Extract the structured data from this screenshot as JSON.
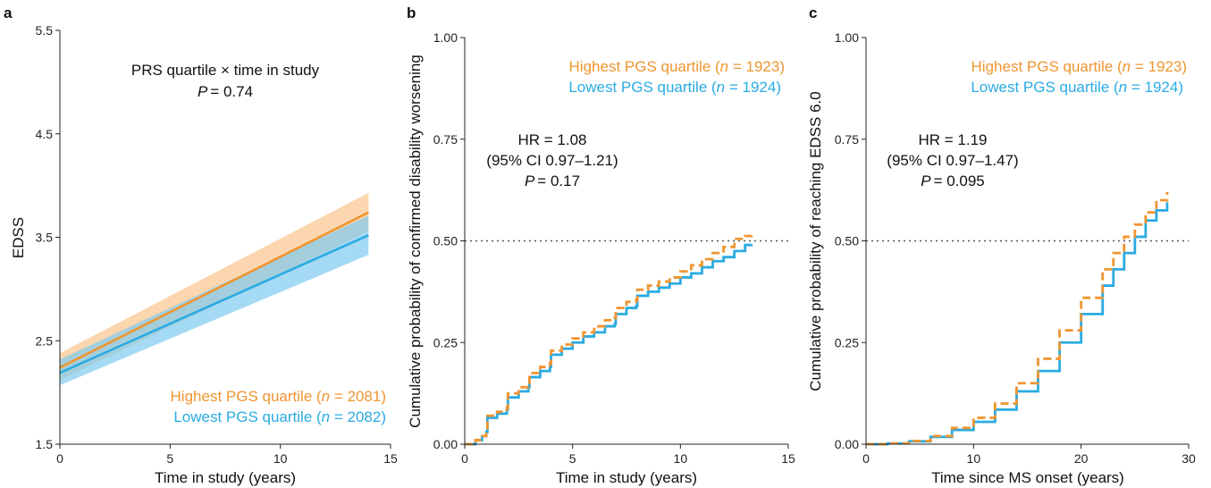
{
  "colors": {
    "highest": "#EF9530",
    "lowest": "#2AABE2",
    "highest_band": "#F9C48D",
    "lowest_band": "#7FCBF0"
  },
  "panels": {
    "a": {
      "letter": "a",
      "annotation_line1": "PRS quartile × time in study",
      "p_label": "P",
      "p_value": "= 0.74",
      "legend_highest_prefix": "Highest PGS quartile (",
      "legend_highest_n": "n",
      "legend_highest_suffix": " = 2081)",
      "legend_lowest_prefix": "Lowest PGS quartile (",
      "legend_lowest_n": "n",
      "legend_lowest_suffix": " = 2082)"
    },
    "b": {
      "letter": "b",
      "hr_line": "HR = 1.08",
      "ci_line": "(95% CI 0.97–1.21)",
      "p_label": "P",
      "p_value": "= 0.17",
      "legend_highest_prefix": "Highest PGS quartile (",
      "legend_highest_n": "n",
      "legend_highest_suffix": " = 1923)",
      "legend_lowest_prefix": "Lowest PGS quartile (",
      "legend_lowest_n": "n",
      "legend_lowest_suffix": " = 1924)"
    },
    "c": {
      "letter": "c",
      "hr_line": "HR = 1.19",
      "ci_line": "(95% CI 0.97–1.47)",
      "p_label": "P",
      "p_value": "= 0.095",
      "legend_highest_prefix": "Highest PGS quartile (",
      "legend_highest_n": "n",
      "legend_highest_suffix": " = 1923)",
      "legend_lowest_prefix": "Lowest PGS quartile (",
      "legend_lowest_n": "n",
      "legend_lowest_suffix": " = 1924)"
    }
  },
  "chart_data": [
    {
      "type": "line",
      "panel": "a",
      "xlabel": "Time in study (years)",
      "ylabel": "EDSS",
      "xlim": [
        0,
        15
      ],
      "ylim": [
        1.5,
        5.5
      ],
      "xticks": [
        0,
        5,
        10,
        15
      ],
      "xtick_labels": [
        "0",
        "5",
        "10",
        "15"
      ],
      "yticks": [
        1.5,
        2.5,
        3.5,
        4.5,
        5.5
      ],
      "ytick_labels": [
        "1.5",
        "2.5",
        "3.5",
        "4.5",
        "5.5"
      ],
      "series": [
        {
          "name": "Highest PGS quartile (n = 2081)",
          "x": [
            0,
            14
          ],
          "y": [
            2.24,
            3.74
          ],
          "ci_lower": [
            2.12,
            3.56
          ],
          "ci_upper": [
            2.38,
            3.93
          ]
        },
        {
          "name": "Lowest PGS quartile (n = 2082)",
          "x": [
            0,
            14
          ],
          "y": [
            2.19,
            3.52
          ],
          "ci_lower": [
            2.07,
            3.33
          ],
          "ci_upper": [
            2.32,
            3.71
          ]
        }
      ]
    },
    {
      "type": "line",
      "panel": "b",
      "xlabel": "Time in study (years)",
      "ylabel": "Cumulative probability of confirmed disability worsening",
      "xlim": [
        0,
        15
      ],
      "ylim": [
        0,
        1
      ],
      "xticks": [
        0,
        5,
        10,
        15
      ],
      "xtick_labels": [
        "0",
        "5",
        "10",
        "15"
      ],
      "yticks": [
        0,
        0.25,
        0.5,
        0.75,
        1
      ],
      "ytick_labels": [
        "0.00",
        "0.25",
        "0.50",
        "0.75",
        "1.00"
      ],
      "reference_line_y": 0.5,
      "series": [
        {
          "name": "Highest PGS quartile (n = 1923)",
          "x": [
            0,
            0.5,
            0.8,
            1.0,
            1.05,
            1.5,
            1.95,
            2.0,
            2.5,
            2.95,
            3.0,
            3.5,
            3.95,
            4.0,
            4.5,
            5.0,
            5.5,
            6.0,
            6.5,
            6.95,
            7.0,
            7.5,
            7.95,
            8.0,
            8.5,
            9.0,
            9.5,
            10.0,
            10.5,
            11.0,
            11.5,
            12.0,
            12.5,
            13.0,
            13.3
          ],
          "y": [
            0,
            0.01,
            0.02,
            0.035,
            0.07,
            0.08,
            0.09,
            0.125,
            0.14,
            0.15,
            0.175,
            0.19,
            0.2,
            0.23,
            0.245,
            0.26,
            0.275,
            0.29,
            0.305,
            0.31,
            0.335,
            0.35,
            0.355,
            0.38,
            0.39,
            0.4,
            0.41,
            0.425,
            0.44,
            0.455,
            0.47,
            0.485,
            0.505,
            0.512,
            0.513
          ]
        },
        {
          "name": "Lowest PGS quartile (n = 1924)",
          "x": [
            0,
            0.5,
            0.8,
            1.0,
            1.05,
            1.5,
            1.95,
            2.0,
            2.5,
            2.95,
            3.0,
            3.5,
            3.95,
            4.0,
            4.5,
            5.0,
            5.5,
            6.0,
            6.5,
            6.95,
            7.0,
            7.5,
            7.95,
            8.0,
            8.5,
            9.0,
            9.5,
            10.0,
            10.5,
            11.0,
            11.5,
            12.0,
            12.5,
            13.0,
            13.3
          ],
          "y": [
            0,
            0.01,
            0.02,
            0.03,
            0.065,
            0.075,
            0.085,
            0.115,
            0.13,
            0.14,
            0.165,
            0.18,
            0.19,
            0.22,
            0.235,
            0.25,
            0.265,
            0.275,
            0.29,
            0.295,
            0.32,
            0.335,
            0.34,
            0.365,
            0.375,
            0.385,
            0.395,
            0.41,
            0.42,
            0.435,
            0.45,
            0.46,
            0.475,
            0.49,
            0.491
          ]
        }
      ]
    },
    {
      "type": "line",
      "panel": "c",
      "xlabel": "Time since MS onset (years)",
      "ylabel": "Cumulative probability of reaching EDSS 6.0",
      "xlim": [
        0,
        30
      ],
      "ylim": [
        0,
        1
      ],
      "xticks": [
        0,
        10,
        20,
        30
      ],
      "xtick_labels": [
        "0",
        "10",
        "20",
        "30"
      ],
      "yticks": [
        0,
        0.25,
        0.5,
        0.75,
        1
      ],
      "ytick_labels": [
        "0.00",
        "0.25",
        "0.50",
        "0.75",
        "1.00"
      ],
      "reference_line_y": 0.5,
      "series": [
        {
          "name": "Highest PGS quartile (n = 1923)",
          "x": [
            0,
            2,
            4,
            6,
            8,
            10,
            12,
            14,
            16,
            18,
            20,
            22,
            23,
            24,
            25,
            26,
            27,
            28
          ],
          "y": [
            0,
            0.002,
            0.008,
            0.02,
            0.04,
            0.065,
            0.1,
            0.15,
            0.21,
            0.28,
            0.36,
            0.43,
            0.47,
            0.51,
            0.54,
            0.57,
            0.6,
            0.62
          ]
        },
        {
          "name": "Lowest PGS quartile (n = 1924)",
          "x": [
            0,
            2,
            4,
            6,
            8,
            10,
            12,
            14,
            16,
            18,
            20,
            22,
            23,
            24,
            25,
            26,
            27,
            28
          ],
          "y": [
            0,
            0.002,
            0.007,
            0.018,
            0.035,
            0.055,
            0.085,
            0.13,
            0.18,
            0.25,
            0.32,
            0.39,
            0.43,
            0.47,
            0.51,
            0.55,
            0.575,
            0.595
          ]
        }
      ]
    }
  ]
}
